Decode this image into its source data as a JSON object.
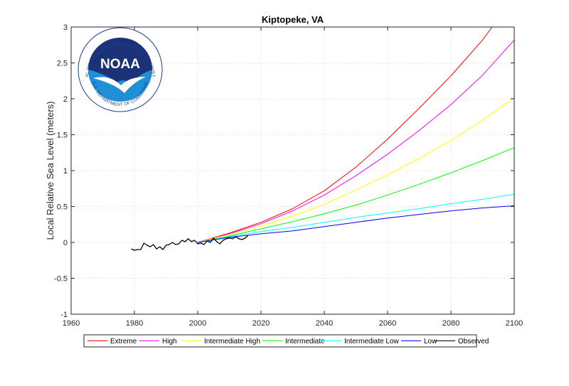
{
  "chart_data": {
    "type": "line",
    "title": "Kiptopeke, VA",
    "xlabel": "",
    "ylabel": "Local Relative Sea Level (meters)",
    "xlim": [
      1960,
      2100
    ],
    "ylim": [
      -1,
      3
    ],
    "xticks": [
      1960,
      1980,
      2000,
      2020,
      2040,
      2060,
      2080,
      2100
    ],
    "yticks": [
      -1,
      -0.5,
      0,
      0.5,
      1,
      1.5,
      2,
      2.5,
      3
    ],
    "xtick_labels": [
      "1960",
      "1980",
      "2000",
      "2020",
      "2040",
      "2060",
      "2080",
      "2100"
    ],
    "ytick_labels": [
      "-1",
      "-0.5",
      "0",
      "0.5",
      "1",
      "1.5",
      "2",
      "2.5",
      "3"
    ],
    "grid": true,
    "legend_position": "bottom",
    "series": [
      {
        "name": "Extreme",
        "color": "#ff0000",
        "x": [
          2000,
          2010,
          2020,
          2030,
          2040,
          2050,
          2060,
          2070,
          2080,
          2090,
          2093
        ],
        "y": [
          0,
          0.13,
          0.28,
          0.47,
          0.72,
          1.05,
          1.44,
          1.87,
          2.32,
          2.82,
          3.0
        ]
      },
      {
        "name": "High",
        "color": "#ff00ff",
        "x": [
          2000,
          2010,
          2020,
          2030,
          2040,
          2050,
          2060,
          2070,
          2080,
          2090,
          2100
        ],
        "y": [
          0,
          0.12,
          0.26,
          0.44,
          0.66,
          0.93,
          1.23,
          1.56,
          1.92,
          2.33,
          2.82
        ]
      },
      {
        "name": "Intermediate High",
        "color": "#ffff00",
        "x": [
          2000,
          2010,
          2020,
          2030,
          2040,
          2050,
          2060,
          2070,
          2080,
          2090,
          2100
        ],
        "y": [
          0,
          0.11,
          0.23,
          0.37,
          0.53,
          0.73,
          0.94,
          1.17,
          1.42,
          1.7,
          2.02
        ]
      },
      {
        "name": "Intermediate",
        "color": "#00ff00",
        "x": [
          2000,
          2010,
          2020,
          2030,
          2040,
          2050,
          2060,
          2070,
          2080,
          2090,
          2100
        ],
        "y": [
          0,
          0.09,
          0.19,
          0.29,
          0.4,
          0.52,
          0.66,
          0.81,
          0.97,
          1.14,
          1.32
        ]
      },
      {
        "name": "Intermediate Low",
        "color": "#00ffff",
        "x": [
          2000,
          2010,
          2020,
          2030,
          2040,
          2050,
          2060,
          2070,
          2080,
          2090,
          2100
        ],
        "y": [
          0,
          0.08,
          0.15,
          0.21,
          0.28,
          0.35,
          0.41,
          0.47,
          0.54,
          0.6,
          0.67
        ]
      },
      {
        "name": "Low",
        "color": "#0000ff",
        "x": [
          2000,
          2010,
          2020,
          2030,
          2040,
          2050,
          2060,
          2070,
          2080,
          2090,
          2100
        ],
        "y": [
          0,
          0.07,
          0.12,
          0.16,
          0.22,
          0.28,
          0.34,
          0.39,
          0.44,
          0.48,
          0.51
        ]
      },
      {
        "name": "Observed",
        "color": "#000000",
        "x": [
          1979,
          1980,
          1981,
          1982,
          1983,
          1984,
          1985,
          1986,
          1987,
          1988,
          1989,
          1990,
          1991,
          1992,
          1993,
          1994,
          1995,
          1996,
          1997,
          1998,
          1999,
          2000,
          2001,
          2002,
          2003,
          2004,
          2005,
          2006,
          2007,
          2008,
          2009,
          2010,
          2011,
          2012,
          2013,
          2014,
          2015,
          2016
        ],
        "y": [
          -0.09,
          -0.11,
          -0.1,
          -0.1,
          -0.01,
          -0.04,
          -0.06,
          -0.03,
          -0.09,
          -0.06,
          -0.1,
          -0.04,
          -0.03,
          0.0,
          -0.03,
          -0.02,
          0.03,
          0.01,
          0.05,
          0.01,
          0.03,
          -0.02,
          -0.01,
          -0.03,
          0.02,
          0.0,
          0.06,
          0.01,
          -0.02,
          0.03,
          0.05,
          0.06,
          0.05,
          0.08,
          0.05,
          0.04,
          0.06,
          0.1
        ]
      }
    ]
  },
  "logo": {
    "name": "noaa-logo",
    "word": "NOAA",
    "ring_text": "NATIONAL OCEANIC AND ATMOSPHERIC ADMINISTRATION",
    "bottom_text": "U.S. DEPARTMENT OF COMMERCE"
  }
}
